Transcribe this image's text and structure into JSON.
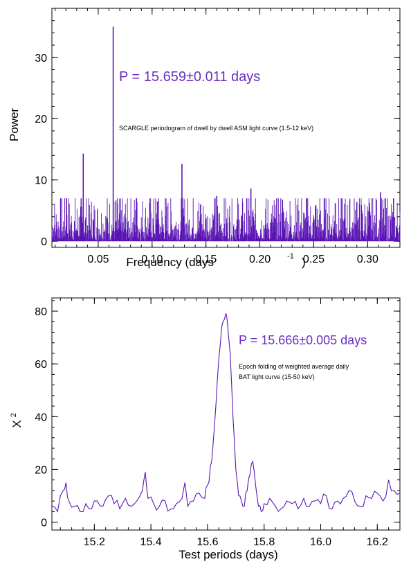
{
  "chart_data": [
    {
      "type": "line",
      "xlabel": "Frequency (days",
      "xlabel_superscript": "-1",
      "xlabel_close": ")",
      "ylabel": "Power",
      "xlim": [
        0.007,
        0.33
      ],
      "ylim": [
        -1,
        38
      ],
      "x_ticks": [
        0.05,
        0.1,
        0.15,
        0.2,
        0.25,
        0.3
      ],
      "x_tick_labels": [
        "0.05",
        "0.10",
        "0.15",
        "0.20",
        "0.25",
        "0.30"
      ],
      "y_ticks": [
        0,
        10,
        20,
        30
      ],
      "y_tick_labels": [
        "0",
        "10",
        "20",
        "30"
      ],
      "grid": false,
      "color": "#5a14b4",
      "annotation_main": "P = 15.659±0.011 days",
      "annotation_note": "SCARGLE periodogram of dwell by dwell ASM light curve (1.5-12 keV)",
      "peaks": [
        {
          "x": 0.0361,
          "y": 14.3
        },
        {
          "x": 0.0639,
          "y": 35.0
        },
        {
          "x": 0.1277,
          "y": 12.6
        },
        {
          "x": 0.1917,
          "y": 8.6
        },
        {
          "x": 0.0205,
          "y": 7.0
        },
        {
          "x": 0.0855,
          "y": 7.0
        },
        {
          "x": 0.105,
          "y": 6.5
        },
        {
          "x": 0.16,
          "y": 7.4
        },
        {
          "x": 0.221,
          "y": 6.8
        },
        {
          "x": 0.29,
          "y": 6.4
        },
        {
          "x": 0.312,
          "y": 8.0
        },
        {
          "x": 0.252,
          "y": 5.9
        },
        {
          "x": 0.145,
          "y": 6.0
        },
        {
          "x": 0.27,
          "y": 6.2
        }
      ],
      "noise_level": 3.0
    },
    {
      "type": "line",
      "xlabel": "Test periods (days)",
      "ylabel": "X",
      "ylabel_superscript": "2",
      "xlim": [
        15.05,
        16.28
      ],
      "ylim": [
        -3,
        85
      ],
      "x_ticks": [
        15.2,
        15.4,
        15.6,
        15.8,
        16.0,
        16.2
      ],
      "x_tick_labels": [
        "15.2",
        "15.4",
        "15.6",
        "15.8",
        "16.0",
        "16.2"
      ],
      "y_ticks": [
        0,
        20,
        40,
        60,
        80
      ],
      "y_tick_labels": [
        "0",
        "20",
        "40",
        "60",
        "80"
      ],
      "grid": false,
      "color": "#5a14b4",
      "annotation_main": "P = 15.666±0.005 days",
      "annotation_note_line1": "Epoch folding of weighted average daily",
      "annotation_note_line2": "BAT light curve (15-50 keV)",
      "x": [
        15.05,
        15.07,
        15.09,
        15.1,
        15.11,
        15.13,
        15.15,
        15.17,
        15.19,
        15.21,
        15.23,
        15.25,
        15.27,
        15.29,
        15.31,
        15.33,
        15.35,
        15.37,
        15.38,
        15.39,
        15.41,
        15.43,
        15.45,
        15.47,
        15.49,
        15.51,
        15.52,
        15.53,
        15.55,
        15.57,
        15.59,
        15.6,
        15.61,
        15.62,
        15.63,
        15.64,
        15.65,
        15.66,
        15.665,
        15.67,
        15.68,
        15.69,
        15.7,
        15.71,
        15.72,
        15.73,
        15.74,
        15.75,
        15.76,
        15.77,
        15.78,
        15.79,
        15.8,
        15.82,
        15.84,
        15.86,
        15.88,
        15.9,
        15.92,
        15.94,
        15.96,
        15.98,
        16.0,
        16.02,
        16.04,
        16.06,
        16.08,
        16.1,
        16.12,
        16.14,
        16.16,
        16.18,
        16.2,
        16.22,
        16.24,
        16.26,
        16.28
      ],
      "y": [
        6,
        4,
        12,
        15,
        8,
        6,
        4,
        7,
        5,
        8,
        6,
        10,
        7,
        5,
        9,
        6,
        8,
        12,
        19,
        9,
        7,
        6,
        8,
        5,
        7,
        9,
        15,
        6,
        8,
        11,
        9,
        14,
        21,
        30,
        45,
        62,
        74,
        77,
        79,
        76,
        64,
        40,
        20,
        10,
        8,
        6,
        12,
        18,
        23,
        14,
        6,
        4,
        7,
        9,
        6,
        5,
        8,
        7,
        5,
        9,
        6,
        8,
        7,
        10,
        5,
        8,
        9,
        12,
        8,
        6,
        10,
        9,
        11,
        8,
        16,
        12,
        11
      ]
    }
  ]
}
